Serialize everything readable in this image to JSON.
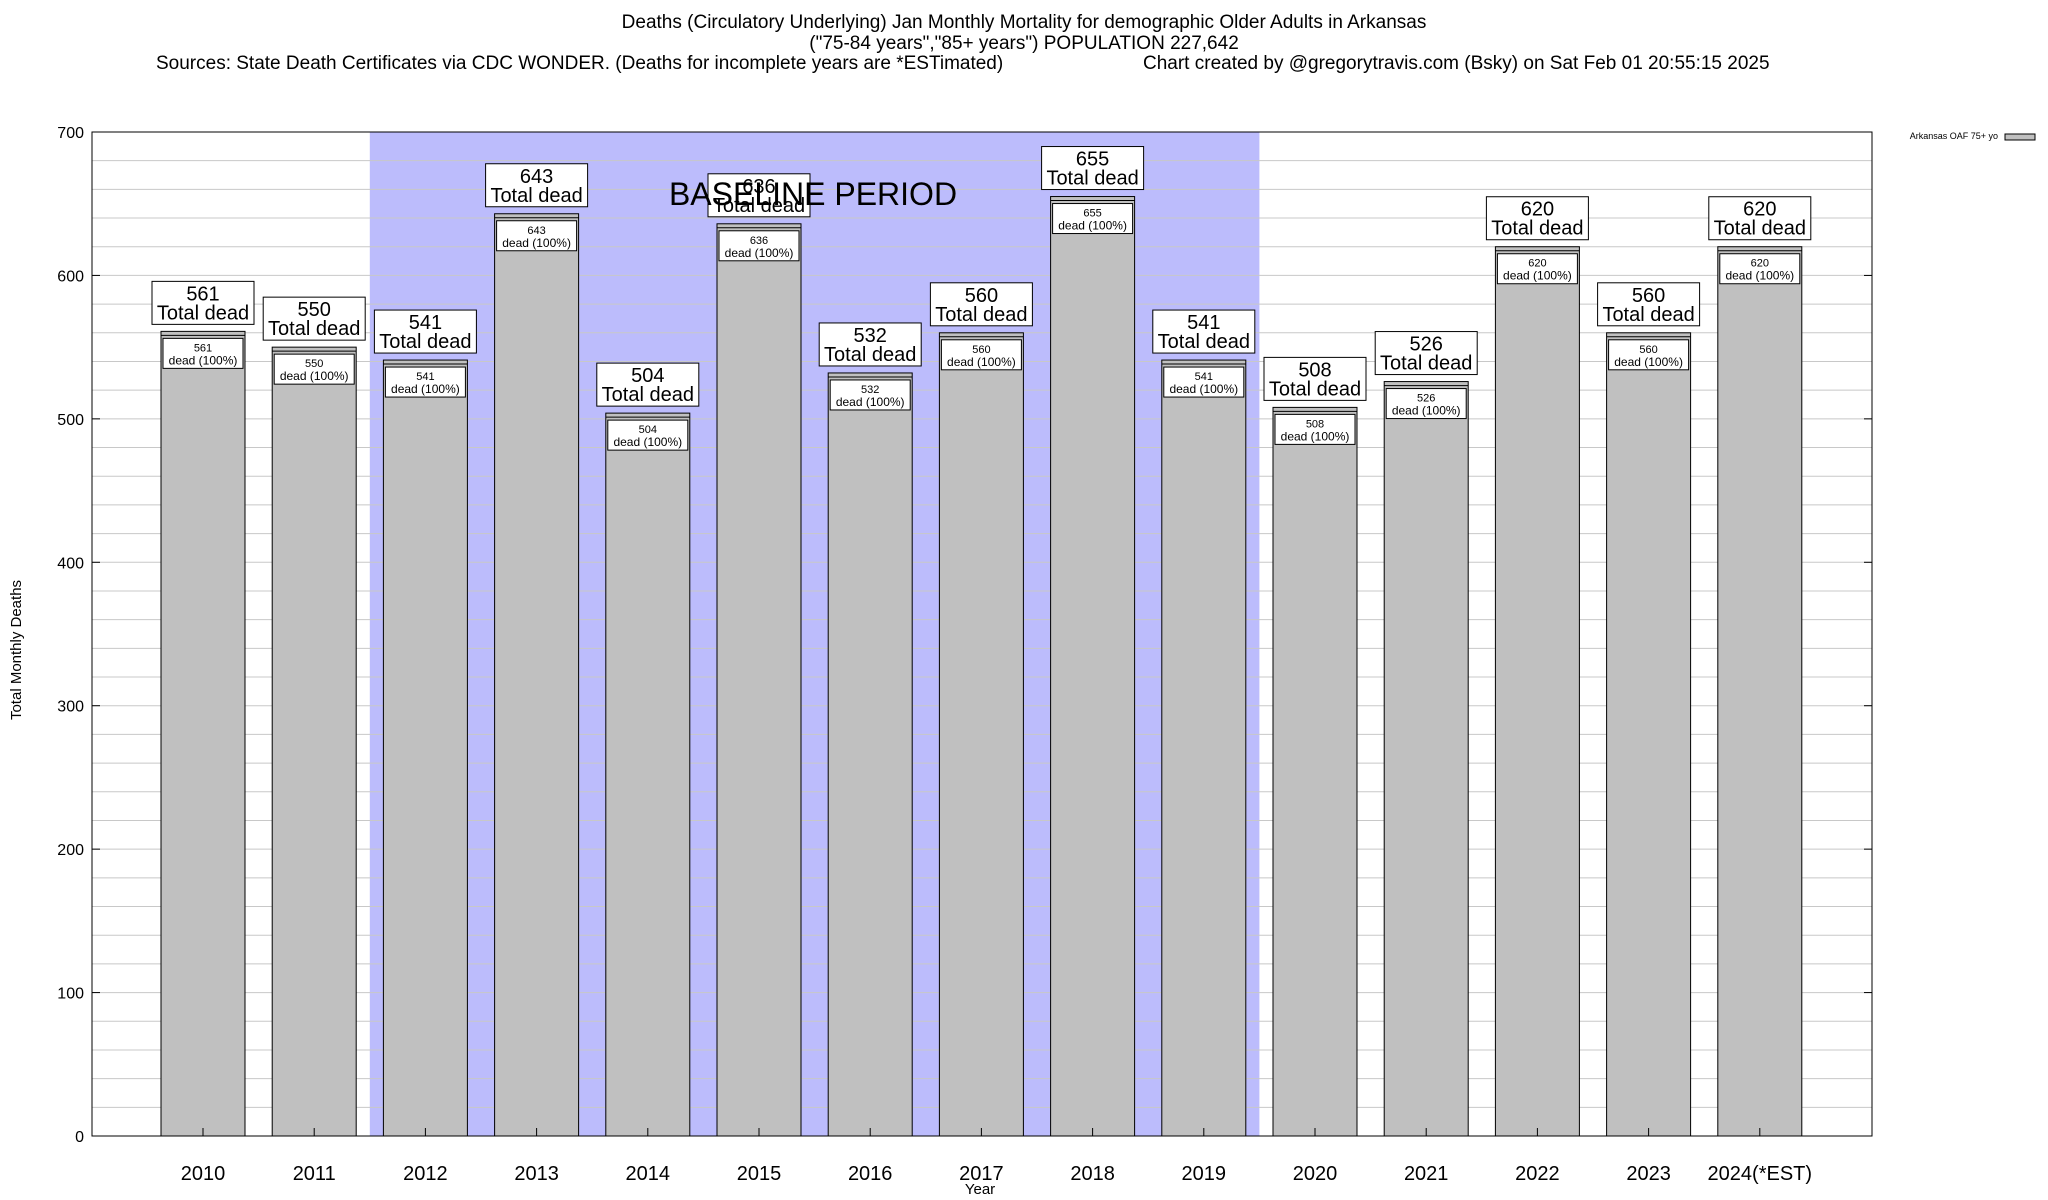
{
  "title": {
    "line1": "Deaths (Circulatory Underlying) Jan Monthly Mortality for demographic Older Adults in Arkansas",
    "line2": "(\"75-84 years\",\"85+ years\") POPULATION 227,642",
    "line3_left": "Sources: State Death Certificates via CDC WONDER. (Deaths for incomplete years are *ESTimated)",
    "line3_right": "Chart created by @gregorytravis.com (Bsky) on Sat Feb 01 20:55:15 2025"
  },
  "colors": {
    "bar_fill": "#c0c0c0",
    "baseline_fill": "#bcbcfc",
    "grid": "#c8c8c8",
    "axis": "#000000"
  },
  "chart_data": {
    "type": "bar",
    "xlabel": "Year",
    "ylabel": "Total Monthly Deaths",
    "ylim": [
      0,
      700
    ],
    "yticks": [
      0,
      100,
      200,
      300,
      400,
      500,
      600,
      700
    ],
    "categories": [
      "2010",
      "2011",
      "2012",
      "2013",
      "2014",
      "2015",
      "2016",
      "2017",
      "2018",
      "2019",
      "2020",
      "2021",
      "2022",
      "2023",
      "2024(*EST)"
    ],
    "series": [
      {
        "name": "Arkansas OAF 75+ yo",
        "values": [
          561,
          550,
          541,
          643,
          504,
          636,
          532,
          560,
          655,
          541,
          508,
          526,
          620,
          560,
          620
        ],
        "top_labels": [
          "561",
          "550",
          "541",
          "643",
          "504",
          "636",
          "532",
          "560",
          "655",
          "541",
          "508",
          "526",
          "620",
          "560",
          "620"
        ],
        "inner_labels": [
          "561",
          "550",
          "541",
          "643",
          "504",
          "636",
          "532",
          "560",
          "655",
          "541",
          "508",
          "526",
          "620",
          "560",
          "620"
        ]
      }
    ],
    "top_label_suffix": "Total dead",
    "inner_label_suffix": "dead (100%)",
    "baseline_period": {
      "label": "BASELINE PERIOD",
      "from": "2012",
      "to": "2019"
    },
    "legend": {
      "position": "top-right",
      "entries": [
        "Arkansas OAF 75+ yo"
      ]
    },
    "grid": true
  }
}
